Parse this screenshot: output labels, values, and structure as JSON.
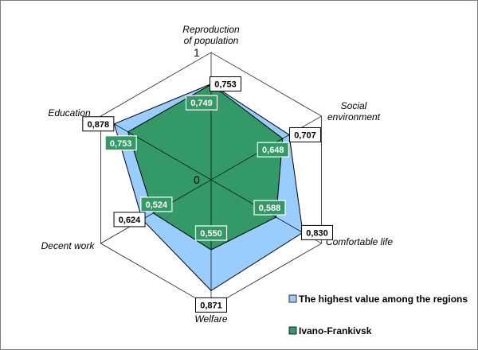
{
  "chart_data": {
    "type": "radar",
    "axes": [
      "Reproduction of population",
      "Social environment",
      "Comfortable life",
      "Welfare",
      "Decent work",
      "Education"
    ],
    "axis_label_lines": [
      [
        "Reproduction",
        "of population"
      ],
      [
        "Social",
        "environment"
      ],
      [
        "Comfortable life"
      ],
      [
        "Welfare"
      ],
      [
        "Decent work"
      ],
      [
        "Education"
      ]
    ],
    "rmin": 0,
    "rmax": 1,
    "tick_labels": [
      "0",
      "1"
    ],
    "grid": true,
    "legend_position": "bottom-right",
    "series": [
      {
        "name": "The highest value among the regions",
        "values": [
          0.753,
          0.707,
          0.83,
          0.871,
          0.624,
          0.878
        ],
        "value_labels": [
          "0,753",
          "0,707",
          "0,830",
          "0,871",
          "0,624",
          "0,878"
        ],
        "color": "#99CCFF"
      },
      {
        "name": "Ivano-Frankivsk",
        "values": [
          0.749,
          0.648,
          0.588,
          0.55,
          0.524,
          0.753
        ],
        "value_labels": [
          "0,749",
          "0,648",
          "0,588",
          "0,550",
          "0,524",
          "0,753"
        ],
        "color": "#339966"
      }
    ]
  }
}
